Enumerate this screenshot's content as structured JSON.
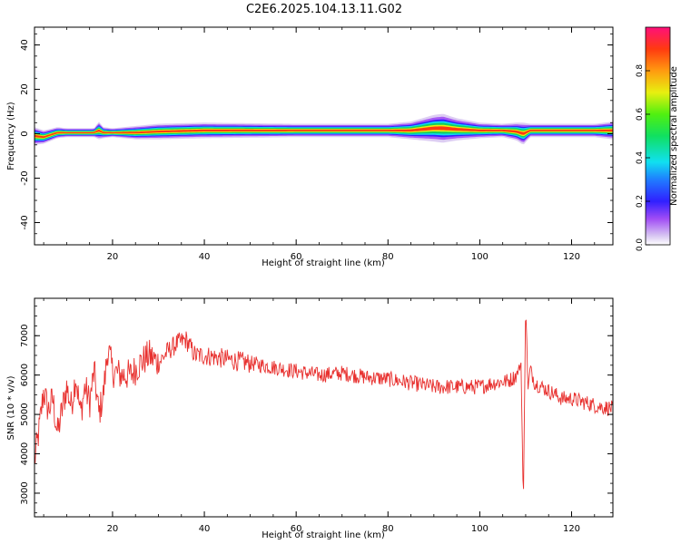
{
  "title": "C2E6.2025.104.13.11.G02",
  "chart_data": [
    {
      "type": "heatmap",
      "xlabel": "Height of straight line (km)",
      "ylabel": "Frequency (Hz)",
      "xlim": [
        3,
        129
      ],
      "ylim": [
        -50,
        48
      ],
      "xticks": [
        20,
        40,
        60,
        80,
        100,
        120
      ],
      "yticks": [
        -40,
        -20,
        0,
        20,
        40
      ],
      "colorbar": {
        "label": "Normalized spectral amplitude",
        "range": [
          0,
          1
        ],
        "ticks": [
          "0.0",
          "0.2",
          "0.4",
          "0.6",
          "0.8"
        ]
      },
      "ridge": {
        "description": "narrow band near 0 Hz with broadening around 88-98 km and 108-111 km",
        "x": [
          3,
          5,
          8,
          10,
          16,
          17,
          18,
          20,
          25,
          30,
          40,
          60,
          80,
          85,
          90,
          92,
          95,
          100,
          105,
          108,
          109.5,
          111,
          115,
          120,
          125,
          129
        ],
        "center_freq": [
          -1,
          -1.5,
          0.5,
          0.5,
          0.5,
          1.5,
          0.5,
          0.5,
          0.5,
          1,
          1.5,
          1.5,
          1.5,
          1.5,
          2.5,
          2.5,
          2,
          1.5,
          1.5,
          1,
          0,
          1.5,
          1.5,
          1.5,
          1.5,
          1.5
        ],
        "halfwidth": [
          4,
          3,
          2.5,
          2,
          2,
          4,
          2.5,
          2,
          3,
          3.5,
          3.5,
          3,
          3,
          4,
          6,
          6.5,
          5,
          3.5,
          3,
          4,
          5,
          3,
          3,
          3,
          3,
          4
        ]
      }
    },
    {
      "type": "line",
      "xlabel": "Height of straight line (km)",
      "ylabel": "SNR (10 * v/v)",
      "xlim": [
        3,
        129
      ],
      "ylim": [
        2400,
        7950
      ],
      "xticks": [
        20,
        40,
        60,
        80,
        100,
        120
      ],
      "yticks": [
        3000,
        4000,
        5000,
        6000,
        7000
      ],
      "series": [
        {
          "color": "#e8312f",
          "x": [
            3,
            4,
            5,
            6,
            7,
            8,
            9,
            10,
            11,
            12,
            13,
            14,
            15,
            16,
            17,
            18,
            19,
            20,
            22,
            24,
            26,
            28,
            30,
            32,
            34,
            36,
            38,
            40,
            45,
            50,
            55,
            60,
            65,
            70,
            75,
            80,
            85,
            90,
            95,
            100,
            103,
            106,
            107,
            108,
            109,
            109.5,
            110,
            110.5,
            111,
            112,
            115,
            118,
            120,
            123,
            126,
            129
          ],
          "y": [
            3800,
            4600,
            5600,
            5100,
            5400,
            4500,
            5100,
            5700,
            5200,
            6000,
            5000,
            5700,
            5300,
            6100,
            5000,
            5500,
            6700,
            6100,
            6000,
            6000,
            6300,
            6500,
            6300,
            6600,
            6800,
            6900,
            6500,
            6500,
            6400,
            6300,
            6200,
            6100,
            6000,
            6050,
            5950,
            5900,
            5800,
            5700,
            5700,
            5700,
            5800,
            5850,
            5900,
            6000,
            6300,
            2600,
            7900,
            5600,
            6200,
            5800,
            5600,
            5400,
            5400,
            5300,
            5200,
            5150
          ]
        }
      ]
    }
  ]
}
